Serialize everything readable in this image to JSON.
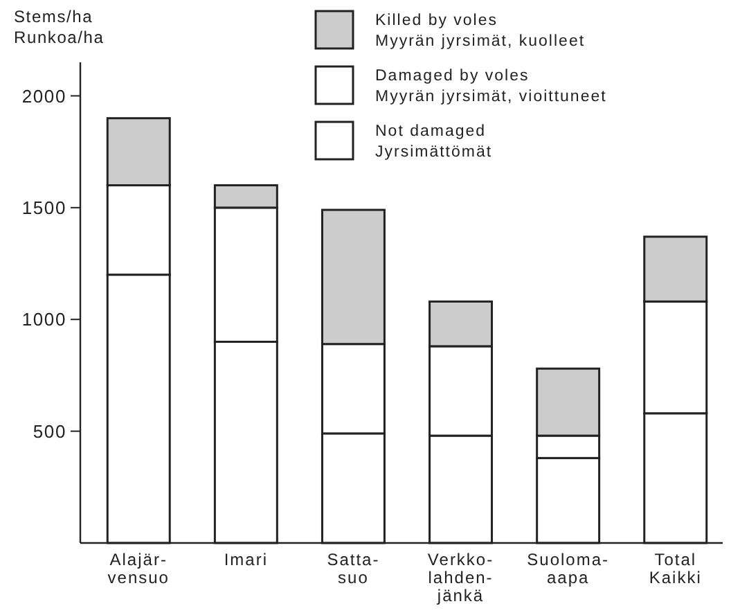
{
  "chart_data": {
    "type": "bar",
    "stacked": true,
    "ylabel": "Stems/ha\nRunkoa/ha",
    "categories": [
      "Alajär-\nvensuo",
      "Imari",
      "Satta-\nsuo",
      "Verkko-\nlahden-\njänkä",
      "Suoloma-\naapa",
      "Total\nKaikki"
    ],
    "series": [
      {
        "name": "Not damaged\nJyrsimättömät",
        "color": "#ffffff",
        "values": [
          1200,
          900,
          490,
          480,
          380,
          580
        ]
      },
      {
        "name": "Damaged by voles\nMyyrän jyrsimät, vioittuneet",
        "color": "#ffffff",
        "values": [
          400,
          600,
          400,
          400,
          100,
          500
        ]
      },
      {
        "name": "Killed by voles\nMyyrän jyrsimät, kuolleet",
        "color": "#cccccc",
        "values": [
          300,
          100,
          600,
          200,
          300,
          290
        ]
      }
    ],
    "ylim": [
      0,
      2150
    ],
    "yticks": [
      500,
      1000,
      1500,
      2000
    ],
    "legend": "top right",
    "grid": false
  }
}
